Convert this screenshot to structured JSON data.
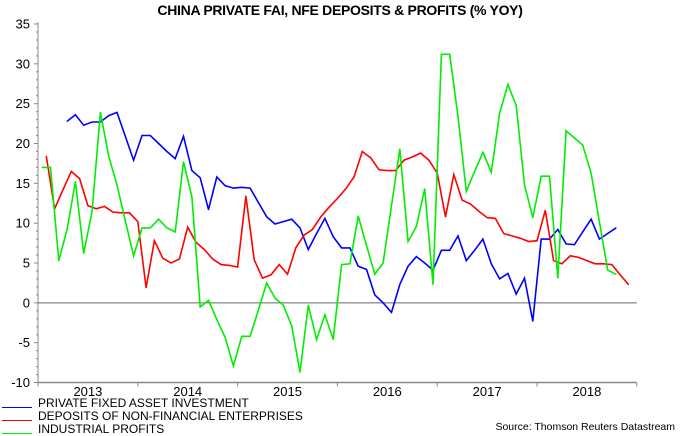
{
  "chart_data": {
    "type": "line",
    "title": "CHINA PRIVATE FAI, NFE DEPOSITS & PROFITS (% YOY)",
    "xlabel": "",
    "ylabel": "",
    "x_start": "2013-01",
    "frequency": "monthly",
    "x_tick_labels": [
      "2013",
      "2014",
      "2015",
      "2016",
      "2017",
      "2018"
    ],
    "ylim": [
      -10,
      35
    ],
    "y_tick_labels": [
      "35",
      "30",
      "25",
      "20",
      "15",
      "10",
      "5",
      "0",
      "-5",
      "-10"
    ],
    "y_ticks": [
      35,
      30,
      25,
      20,
      15,
      10,
      5,
      0,
      -5,
      -10
    ],
    "grid": false,
    "zero_line": true,
    "legend_placement": "bottom-left",
    "series": [
      {
        "name": "PRIVATE FIXED ASSET INVESTMENT",
        "color": "#0000ff",
        "values": [
          null,
          null,
          null,
          22.8,
          23.6,
          22.3,
          22.7,
          22.7,
          23.5,
          23.9,
          20.9,
          17.9,
          21.0,
          21.0,
          20.0,
          19.0,
          18.1,
          20.9,
          16.6,
          15.7,
          11.7,
          15.8,
          14.7,
          14.4,
          14.5,
          14.4,
          12.6,
          10.8,
          9.9,
          10.2,
          10.5,
          9.4,
          6.7,
          8.7,
          10.6,
          8.3,
          6.9,
          6.9,
          4.6,
          4.2,
          1.0,
          0.0,
          -1.2,
          2.3,
          4.6,
          5.8,
          5.0,
          4.1,
          6.6,
          6.6,
          8.4,
          5.3,
          6.6,
          8.0,
          4.9,
          3.0,
          3.7,
          1.1,
          3.1,
          -2.3,
          8.0,
          8.0,
          9.2,
          7.4,
          7.3,
          8.9,
          10.5,
          8.0,
          8.7,
          9.4
        ]
      },
      {
        "name": "DEPOSITS OF NON-FINANCIAL ENTERPRISES",
        "color": "#ff0000",
        "values": [
          18.4,
          11.8,
          14.2,
          16.5,
          15.6,
          12.2,
          11.8,
          12.1,
          11.4,
          11.3,
          11.3,
          10.2,
          1.9,
          7.8,
          5.6,
          5.0,
          5.5,
          9.5,
          7.6,
          6.7,
          5.5,
          4.8,
          4.7,
          4.5,
          13.4,
          5.4,
          3.1,
          3.5,
          4.8,
          3.6,
          6.9,
          8.5,
          9.2,
          10.8,
          12.0,
          13.1,
          14.3,
          15.8,
          19.0,
          18.2,
          16.7,
          16.6,
          16.6,
          17.9,
          18.3,
          18.8,
          17.9,
          16.3,
          10.8,
          16.1,
          12.9,
          12.4,
          11.5,
          10.7,
          10.6,
          8.7,
          8.4,
          8.1,
          7.7,
          7.8,
          11.6,
          5.3,
          4.9,
          5.9,
          5.7,
          5.3,
          4.9,
          4.9,
          4.8,
          3.5,
          2.3
        ]
      },
      {
        "name": "INDUSTRIAL PROFITS",
        "color": "#00ee00",
        "values": [
          17.0,
          17.0,
          5.3,
          9.2,
          15.2,
          6.2,
          11.5,
          23.9,
          18.4,
          14.8,
          10.3,
          5.9,
          9.4,
          9.4,
          10.5,
          9.4,
          8.9,
          17.7,
          13.3,
          -0.5,
          0.3,
          -2.1,
          -4.3,
          -7.9,
          -4.2,
          -4.2,
          -0.9,
          2.5,
          0.6,
          -0.3,
          -2.9,
          -8.7,
          -0.3,
          -4.6,
          -1.5,
          -4.6,
          4.8,
          4.9,
          10.9,
          7.2,
          3.6,
          5.0,
          12.2,
          19.3,
          7.7,
          9.6,
          14.3,
          2.3,
          31.2,
          31.2,
          23.4,
          14.0,
          16.5,
          18.9,
          16.4,
          23.8,
          27.4,
          24.8,
          14.8,
          10.7,
          15.9,
          15.9,
          3.1,
          21.6,
          20.7,
          19.8,
          16.3,
          10.2,
          4.1,
          3.6
        ]
      }
    ],
    "source": "Source: Thomson Reuters Datastream"
  }
}
